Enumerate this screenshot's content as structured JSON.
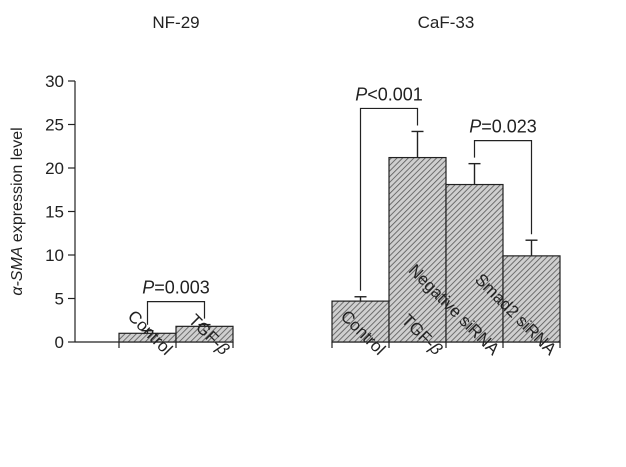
{
  "chart_data": {
    "type": "bar",
    "ylabel": {
      "prefix": "α-",
      "italic": "SMA",
      "suffix": " expression level"
    },
    "ylim": [
      0,
      30
    ],
    "yticks": [
      0,
      5,
      10,
      15,
      20,
      25,
      30
    ],
    "grid": false,
    "groups": [
      {
        "title": "NF-29",
        "categories": [
          "Control",
          "TGF-β"
        ],
        "values": [
          1.0,
          1.8
        ],
        "errors": [
          0.3,
          0.2
        ]
      },
      {
        "title": "CaF-33",
        "categories": [
          "Control",
          "TGF-β",
          "Negative siRNA",
          "Smad2 siRNA"
        ],
        "values": [
          4.7,
          21.2,
          18.1,
          9.9
        ],
        "errors": [
          0.5,
          3.0,
          2.4,
          1.8
        ]
      }
    ],
    "annotations": [
      {
        "label": "P",
        "rest": "=0.003",
        "group": 0,
        "from": 0,
        "to": 1
      },
      {
        "label": "P",
        "rest": "<0.001",
        "group": 1,
        "from": 0,
        "to": 1
      },
      {
        "label": "P",
        "rest": "=0.023",
        "group": 1,
        "from": 2,
        "to": 3
      }
    ]
  }
}
